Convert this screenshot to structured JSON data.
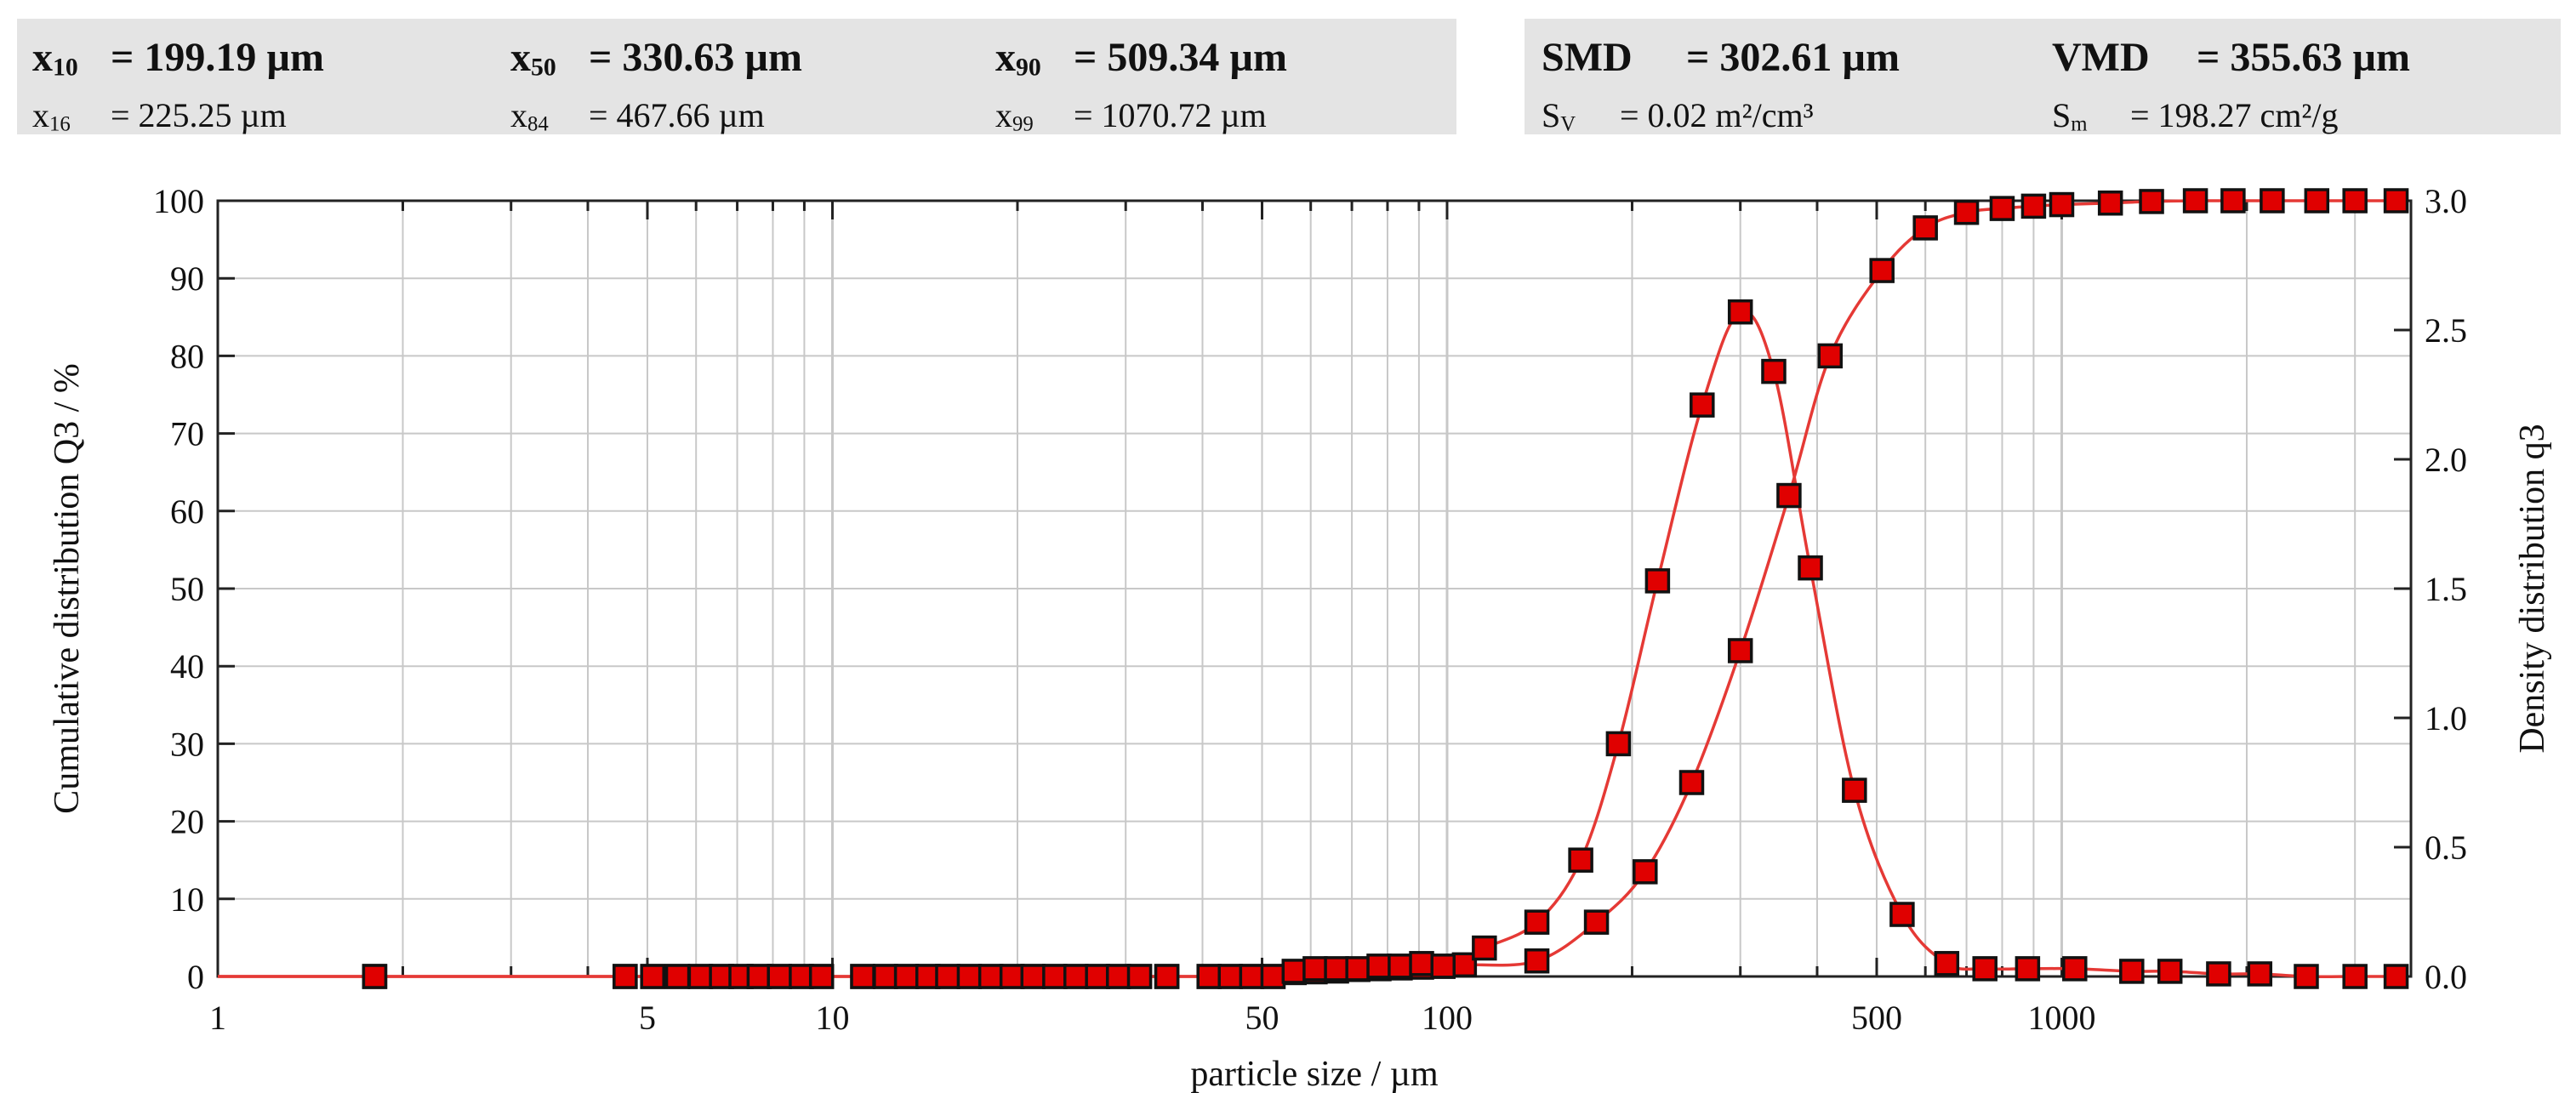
{
  "stats": {
    "left": [
      {
        "sym": "x",
        "sub": "10",
        "value": "= 199.19 µm",
        "size": "big"
      },
      {
        "sym": "x",
        "sub": "50",
        "value": "= 330.63 µm",
        "size": "big"
      },
      {
        "sym": "x",
        "sub": "90",
        "value": "= 509.34 µm",
        "size": "big"
      },
      {
        "sym": "x",
        "sub": "16",
        "value": "= 225.25 µm",
        "size": "small"
      },
      {
        "sym": "x",
        "sub": "84",
        "value": "= 467.66 µm",
        "size": "small"
      },
      {
        "sym": "x",
        "sub": "99",
        "value": "= 1070.72 µm",
        "size": "small"
      }
    ],
    "right": [
      {
        "sym": "SMD",
        "sub": "",
        "value": "= 302.61 µm",
        "size": "big"
      },
      {
        "sym": "VMD",
        "sub": "",
        "value": "= 355.63 µm",
        "size": "big"
      },
      {
        "sym": "S",
        "sub": "V",
        "value": "= 0.02 m²/cm³",
        "size": "small"
      },
      {
        "sym": "S",
        "sub": "m",
        "value": "= 198.27 cm²/g",
        "size": "small"
      }
    ]
  },
  "chart_data": {
    "type": "line",
    "xlabel": "particle size / µm",
    "ylabel_left": "Cumulative distribution Q3 / %",
    "ylabel_right": "Density distribution q3",
    "x_scale": "log",
    "xlim": [
      1,
      3700
    ],
    "ylim_left": [
      0,
      100
    ],
    "ylim_right": [
      0,
      3.0
    ],
    "x_ticks": [
      1,
      5,
      10,
      50,
      100,
      500,
      1000
    ],
    "y_ticks_left": [
      0,
      10,
      20,
      30,
      40,
      50,
      60,
      70,
      80,
      90,
      100
    ],
    "y_ticks_right": [
      "0.0",
      "0.5",
      "1.0",
      "1.5",
      "2.0",
      "2.5",
      "3.0"
    ],
    "grid": true,
    "colors": {
      "line": "#e53935",
      "marker_fill": "#e00000",
      "marker_edge": "#111111",
      "grid": "#c8c8c8"
    },
    "series": [
      {
        "name": "Q3",
        "axis": "left",
        "x": [
          1.8,
          4.6,
          5.1,
          5.6,
          6.1,
          6.6,
          7.1,
          7.6,
          8.2,
          8.9,
          9.6,
          11.2,
          12.2,
          13.2,
          14.3,
          15.4,
          16.7,
          18.1,
          19.6,
          21.2,
          23.0,
          24.9,
          27.0,
          29.2,
          31.6,
          35.0,
          41.0,
          44.4,
          48.1,
          52.1,
          56.4,
          61.0,
          66.1,
          71.6,
          77.5,
          83.9,
          90.9,
          98.5,
          106.7,
          140,
          175,
          210,
          250,
          300,
          360,
          420,
          510,
          600,
          700,
          800,
          900,
          1000,
          1200,
          1400,
          1650,
          1900,
          2200,
          2600,
          3000,
          3500
        ],
        "y": [
          0,
          0,
          0,
          0,
          0,
          0,
          0,
          0,
          0,
          0,
          0,
          0,
          0,
          0,
          0,
          0,
          0,
          0,
          0,
          0,
          0,
          0,
          0,
          0,
          0,
          0,
          0,
          0,
          0,
          0,
          0.5,
          0.6,
          0.7,
          0.9,
          1.0,
          1.1,
          1.2,
          1.3,
          1.5,
          2.0,
          7.0,
          13.5,
          25.0,
          42.0,
          62.0,
          80.0,
          91.0,
          96.5,
          98.5,
          99.0,
          99.3,
          99.5,
          99.7,
          99.9,
          100,
          100,
          100,
          100,
          100,
          100
        ]
      },
      {
        "name": "q3",
        "axis": "right",
        "x": [
          1.8,
          4.6,
          5.1,
          5.6,
          6.1,
          6.6,
          7.1,
          7.6,
          8.2,
          8.9,
          9.6,
          11.2,
          12.2,
          13.2,
          14.3,
          15.4,
          16.7,
          18.1,
          19.6,
          21.2,
          23.0,
          24.9,
          27.0,
          29.2,
          31.6,
          35.0,
          41.0,
          44.4,
          48.1,
          52.1,
          56.4,
          61.0,
          66.1,
          71.6,
          77.5,
          83.9,
          90.9,
          98.5,
          115,
          140,
          165,
          190,
          220,
          260,
          300,
          340,
          390,
          460,
          550,
          650,
          750,
          880,
          1050,
          1300,
          1500,
          1800,
          2100,
          2500,
          3000,
          3500
        ],
        "y": [
          0,
          0,
          0,
          0,
          0,
          0,
          0,
          0,
          0,
          0,
          0,
          0,
          0,
          0,
          0,
          0,
          0,
          0,
          0,
          0,
          0,
          0,
          0,
          0,
          0,
          0,
          0,
          0,
          0,
          0,
          0.02,
          0.03,
          0.03,
          0.03,
          0.04,
          0.04,
          0.05,
          0.04,
          0.11,
          0.21,
          0.45,
          0.9,
          1.53,
          2.21,
          2.57,
          2.34,
          1.58,
          0.72,
          0.24,
          0.05,
          0.03,
          0.03,
          0.03,
          0.02,
          0.02,
          0.01,
          0.01,
          0.0,
          0.0,
          0.0
        ]
      }
    ]
  }
}
